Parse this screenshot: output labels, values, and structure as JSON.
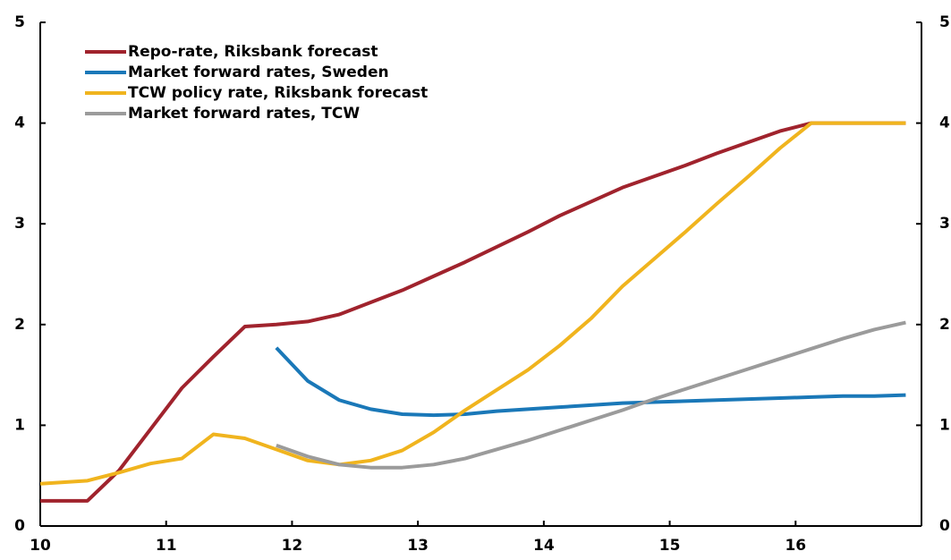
{
  "chart_data": {
    "type": "line",
    "x": [
      10,
      10.125,
      10.375,
      10.625,
      10.875,
      11.125,
      11.375,
      11.625,
      11.875,
      12.125,
      12.375,
      12.625,
      12.875,
      13.125,
      13.375,
      13.625,
      13.875,
      14.125,
      14.375,
      14.625,
      14.875,
      15.125,
      15.375,
      15.625,
      15.875,
      16.125,
      16.375,
      16.625,
      16.875
    ],
    "series": [
      {
        "name": "Repo-rate, Riksbank forecast",
        "color": "#a0232d",
        "values": [
          0.25,
          0.25,
          0.25,
          0.55,
          0.96,
          1.37,
          1.68,
          1.98,
          2.0,
          2.03,
          2.1,
          2.22,
          2.34,
          2.48,
          2.62,
          2.77,
          2.92,
          3.08,
          3.22,
          3.36,
          3.47,
          3.58,
          3.7,
          3.81,
          3.92,
          4.0,
          4,
          4,
          4
        ]
      },
      {
        "name": "Market forward rates, Sweden",
        "color": "#1a78b8",
        "values": [
          null,
          null,
          null,
          null,
          null,
          null,
          null,
          null,
          1.77,
          1.44,
          1.25,
          1.16,
          1.11,
          1.1,
          1.11,
          1.14,
          1.16,
          1.18,
          1.2,
          1.22,
          1.23,
          1.24,
          1.25,
          1.26,
          1.27,
          1.28,
          1.29,
          1.29,
          1.3
        ]
      },
      {
        "name": "TCW policy rate, Riksbank forecast",
        "color": "#f0b41e",
        "values": [
          0.42,
          0.43,
          0.45,
          0.53,
          0.62,
          0.67,
          0.91,
          0.87,
          0.76,
          0.65,
          0.61,
          0.65,
          0.75,
          0.93,
          1.15,
          1.35,
          1.55,
          1.79,
          2.06,
          2.38,
          2.65,
          2.92,
          3.2,
          3.47,
          3.75,
          4.0,
          4,
          4,
          4
        ]
      },
      {
        "name": "Market forward rates, TCW",
        "color": "#9b9b9b",
        "values": [
          null,
          null,
          null,
          null,
          null,
          null,
          null,
          null,
          0.8,
          0.69,
          0.61,
          0.58,
          0.58,
          0.61,
          0.67,
          0.76,
          0.85,
          0.95,
          1.05,
          1.15,
          1.26,
          1.36,
          1.46,
          1.56,
          1.66,
          1.76,
          1.86,
          1.95,
          2.02
        ]
      }
    ],
    "xlim": [
      10,
      17
    ],
    "xticks": [
      10,
      11,
      12,
      13,
      14,
      15,
      16
    ],
    "ylim": [
      0,
      5
    ],
    "yticks": [
      0,
      1,
      2,
      3,
      4,
      5
    ],
    "y2lim": [
      0,
      5
    ],
    "y2ticks": [
      0,
      1,
      2,
      3,
      4,
      5
    ],
    "legend": "upper left"
  }
}
